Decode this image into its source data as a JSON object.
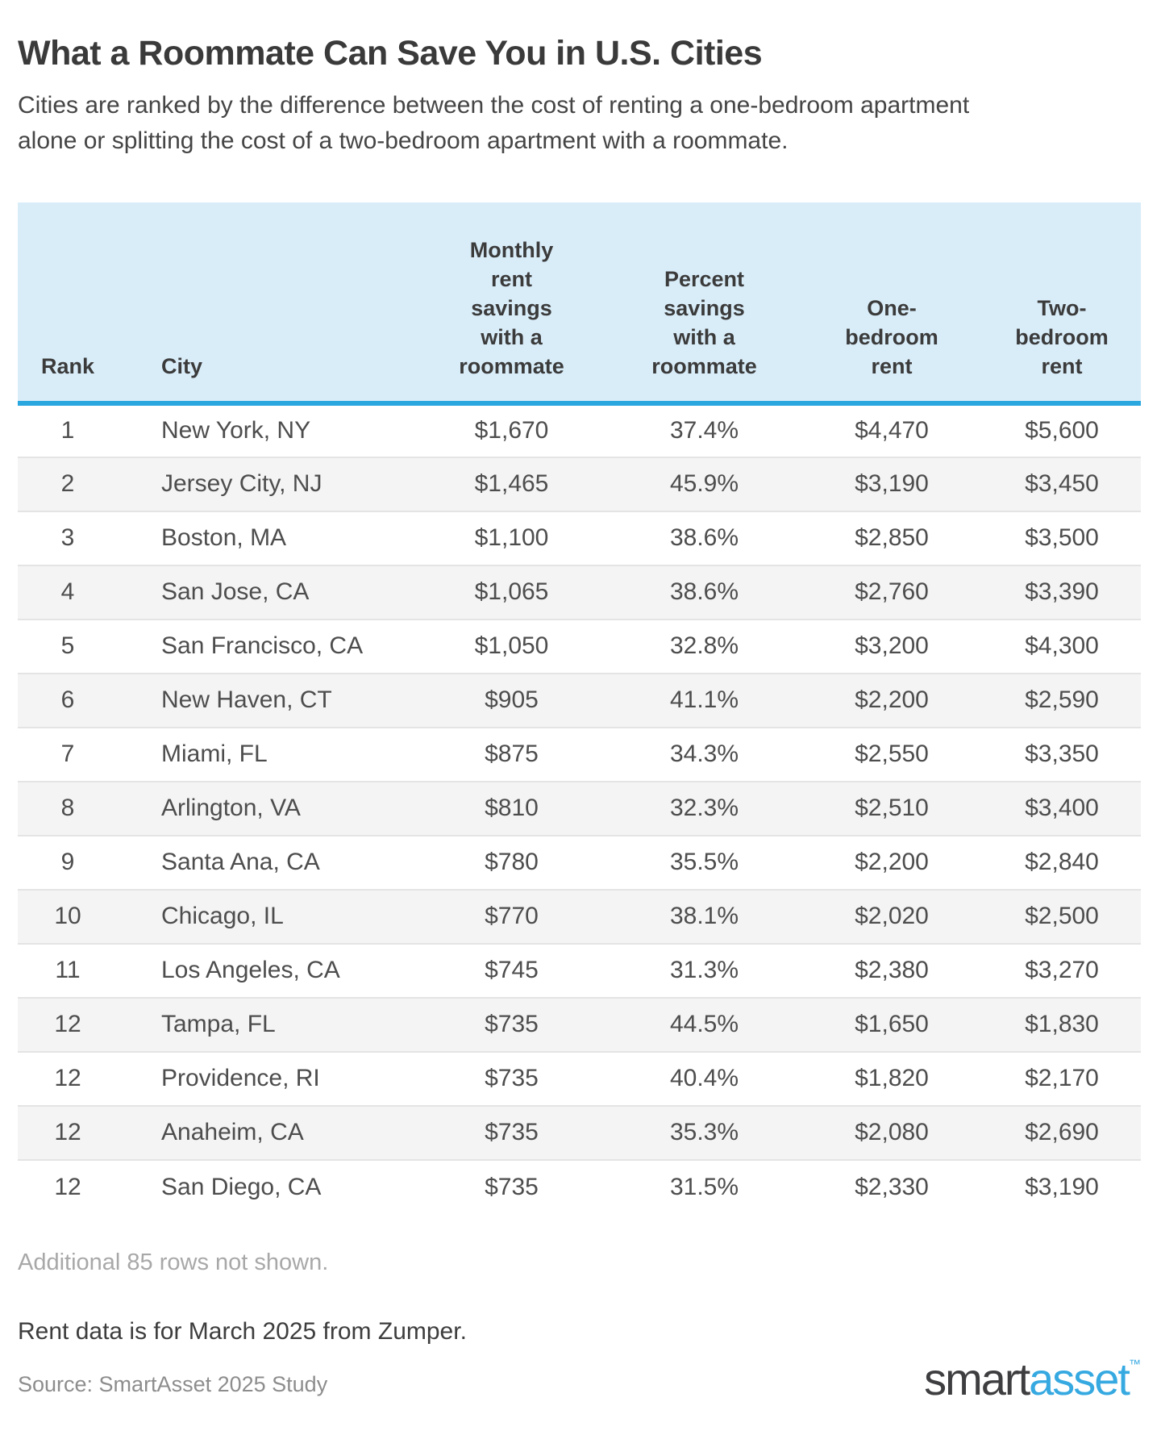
{
  "title": "What a Roommate Can Save You in U.S. Cities",
  "subtitle": "Cities are ranked by the difference between the cost of renting a one-bedroom apartment alone or splitting the cost of a two-bedroom apartment with a roommate.",
  "chart_data": {
    "type": "table",
    "columns": [
      "Rank",
      "City",
      "Monthly rent savings with a roommate",
      "Percent savings with a roommate",
      "One-bedroom rent",
      "Two-bedroom rent"
    ],
    "rows": [
      {
        "rank": "1",
        "city": "New York, NY",
        "monthly_savings": "$1,670",
        "percent_savings": "37.4%",
        "one_bedroom_rent": "$4,470",
        "two_bedroom_rent": "$5,600"
      },
      {
        "rank": "2",
        "city": "Jersey City, NJ",
        "monthly_savings": "$1,465",
        "percent_savings": "45.9%",
        "one_bedroom_rent": "$3,190",
        "two_bedroom_rent": "$3,450"
      },
      {
        "rank": "3",
        "city": "Boston, MA",
        "monthly_savings": "$1,100",
        "percent_savings": "38.6%",
        "one_bedroom_rent": "$2,850",
        "two_bedroom_rent": "$3,500"
      },
      {
        "rank": "4",
        "city": "San Jose, CA",
        "monthly_savings": "$1,065",
        "percent_savings": "38.6%",
        "one_bedroom_rent": "$2,760",
        "two_bedroom_rent": "$3,390"
      },
      {
        "rank": "5",
        "city": "San Francisco, CA",
        "monthly_savings": "$1,050",
        "percent_savings": "32.8%",
        "one_bedroom_rent": "$3,200",
        "two_bedroom_rent": "$4,300"
      },
      {
        "rank": "6",
        "city": "New Haven, CT",
        "monthly_savings": "$905",
        "percent_savings": "41.1%",
        "one_bedroom_rent": "$2,200",
        "two_bedroom_rent": "$2,590"
      },
      {
        "rank": "7",
        "city": "Miami, FL",
        "monthly_savings": "$875",
        "percent_savings": "34.3%",
        "one_bedroom_rent": "$2,550",
        "two_bedroom_rent": "$3,350"
      },
      {
        "rank": "8",
        "city": "Arlington, VA",
        "monthly_savings": "$810",
        "percent_savings": "32.3%",
        "one_bedroom_rent": "$2,510",
        "two_bedroom_rent": "$3,400"
      },
      {
        "rank": "9",
        "city": "Santa Ana, CA",
        "monthly_savings": "$780",
        "percent_savings": "35.5%",
        "one_bedroom_rent": "$2,200",
        "two_bedroom_rent": "$2,840"
      },
      {
        "rank": "10",
        "city": "Chicago, IL",
        "monthly_savings": "$770",
        "percent_savings": "38.1%",
        "one_bedroom_rent": "$2,020",
        "two_bedroom_rent": "$2,500"
      },
      {
        "rank": "11",
        "city": "Los Angeles, CA",
        "monthly_savings": "$745",
        "percent_savings": "31.3%",
        "one_bedroom_rent": "$2,380",
        "two_bedroom_rent": "$3,270"
      },
      {
        "rank": "12",
        "city": "Tampa, FL",
        "monthly_savings": "$735",
        "percent_savings": "44.5%",
        "one_bedroom_rent": "$1,650",
        "two_bedroom_rent": "$1,830"
      },
      {
        "rank": "12",
        "city": "Providence, RI",
        "monthly_savings": "$735",
        "percent_savings": "40.4%",
        "one_bedroom_rent": "$1,820",
        "two_bedroom_rent": "$2,170"
      },
      {
        "rank": "12",
        "city": "Anaheim, CA",
        "monthly_savings": "$735",
        "percent_savings": "35.3%",
        "one_bedroom_rent": "$2,080",
        "two_bedroom_rent": "$2,690"
      },
      {
        "rank": "12",
        "city": "San Diego, CA",
        "monthly_savings": "$735",
        "percent_savings": "31.5%",
        "one_bedroom_rent": "$2,330",
        "two_bedroom_rent": "$3,190"
      }
    ]
  },
  "notes": {
    "additional_rows": "Additional 85 rows not shown.",
    "rent_note": "Rent data is for March 2025 from Zumper.",
    "source": "Source: SmartAsset 2025 Study"
  },
  "logo": {
    "part1": "smart",
    "part2": "asset",
    "trademark": "™"
  },
  "colors": {
    "header_bg": "#d9edf9",
    "accent_line": "#2ba7df",
    "row_stripe": "#f4f4f4",
    "logo_blue": "#36a9e1"
  }
}
